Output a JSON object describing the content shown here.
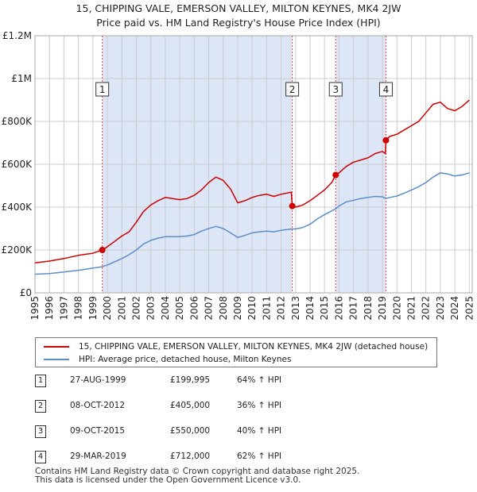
{
  "title_line1": "15, CHIPPING VALE, EMERSON VALLEY, MILTON KEYNES, MK4 2JW",
  "title_line2": "Price paid vs. HM Land Registry's House Price Index (HPI)",
  "colors": {
    "property": "#cc0000",
    "hpi": "#5b8ec9",
    "shade": "#dde6f7",
    "marker_line": "#dd4444",
    "grid": "#cccccc"
  },
  "chart_data": {
    "type": "line",
    "title": "15, CHIPPING VALE, EMERSON VALLEY, MILTON KEYNES, MK4 2JW — Price paid vs. HM Land Registry's House Price Index (HPI)",
    "xlim": [
      1995,
      2025.2
    ],
    "ylim": [
      0,
      1200000
    ],
    "y_ticks": [
      0,
      200000,
      400000,
      600000,
      800000,
      1000000,
      1200000
    ],
    "y_tick_labels": [
      "£0",
      "£200K",
      "£400K",
      "£600K",
      "£800K",
      "£1M",
      "£1.2M"
    ],
    "x_ticks": [
      1995,
      1996,
      1997,
      1998,
      1999,
      2000,
      2001,
      2002,
      2003,
      2004,
      2005,
      2006,
      2007,
      2008,
      2009,
      2010,
      2011,
      2012,
      2013,
      2014,
      2015,
      2016,
      2017,
      2018,
      2019,
      2020,
      2021,
      2022,
      2023,
      2024,
      2025
    ],
    "x_tick_labels": [
      "1995",
      "1996",
      "1997",
      "1998",
      "1999",
      "2000",
      "2001",
      "2002",
      "2003",
      "2004",
      "2005",
      "2006",
      "2007",
      "2008",
      "2009",
      "2010",
      "2011",
      "2012",
      "2013",
      "2014",
      "2015",
      "2016",
      "2017",
      "2018",
      "2019",
      "2020",
      "2021",
      "2022",
      "2023",
      "2024",
      "2025"
    ],
    "shaded_ranges": [
      [
        1999.65,
        2012.77
      ],
      [
        2015.77,
        2019.24
      ]
    ],
    "series": [
      {
        "name": "15, CHIPPING VALE, EMERSON VALLEY, MILTON KEYNES, MK4 2JW (detached house)",
        "x": [
          1995.0,
          1996.0,
          1997.0,
          1998.0,
          1999.0,
          1999.65,
          2000.0,
          2000.5,
          2001.0,
          2001.5,
          2002.0,
          2002.5,
          2003.0,
          2003.5,
          2004.0,
          2004.5,
          2005.0,
          2005.5,
          2006.0,
          2006.5,
          2007.0,
          2007.5,
          2008.0,
          2008.5,
          2009.0,
          2009.5,
          2010.0,
          2010.5,
          2011.0,
          2011.5,
          2012.0,
          2012.7,
          2012.77,
          2013.0,
          2013.5,
          2014.0,
          2014.5,
          2015.0,
          2015.5,
          2015.77,
          2016.0,
          2016.5,
          2017.0,
          2017.5,
          2018.0,
          2018.5,
          2019.0,
          2019.2,
          2019.24,
          2019.5,
          2020.0,
          2020.5,
          2021.0,
          2021.5,
          2022.0,
          2022.5,
          2023.0,
          2023.5,
          2024.0,
          2024.5,
          2025.0
        ],
        "values": [
          140000,
          148000,
          160000,
          175000,
          185000,
          199995,
          215000,
          240000,
          265000,
          285000,
          330000,
          380000,
          410000,
          430000,
          445000,
          440000,
          435000,
          440000,
          455000,
          480000,
          515000,
          540000,
          525000,
          485000,
          420000,
          430000,
          445000,
          455000,
          460000,
          450000,
          460000,
          470000,
          405000,
          400000,
          410000,
          430000,
          455000,
          480000,
          515000,
          550000,
          560000,
          590000,
          610000,
          620000,
          630000,
          650000,
          660000,
          650000,
          712000,
          730000,
          740000,
          760000,
          780000,
          800000,
          840000,
          880000,
          890000,
          860000,
          850000,
          870000,
          900000
        ],
        "sale_points": [
          {
            "x": 1999.65,
            "value": 199995
          },
          {
            "x": 2012.77,
            "value": 405000
          },
          {
            "x": 2015.77,
            "value": 550000
          },
          {
            "x": 2019.24,
            "value": 712000
          }
        ]
      },
      {
        "name": "HPI: Average price, detached house, Milton Keynes",
        "x": [
          1995.0,
          1996.0,
          1997.0,
          1998.0,
          1999.0,
          1999.65,
          2000.0,
          2000.5,
          2001.0,
          2001.5,
          2002.0,
          2002.5,
          2003.0,
          2003.5,
          2004.0,
          2004.5,
          2005.0,
          2005.5,
          2006.0,
          2006.5,
          2007.0,
          2007.5,
          2008.0,
          2008.5,
          2009.0,
          2009.5,
          2010.0,
          2010.5,
          2011.0,
          2011.5,
          2012.0,
          2012.77,
          2013.0,
          2013.5,
          2014.0,
          2014.5,
          2015.0,
          2015.77,
          2016.0,
          2016.5,
          2017.0,
          2017.5,
          2018.0,
          2018.5,
          2019.0,
          2019.24,
          2019.5,
          2020.0,
          2020.5,
          2021.0,
          2021.5,
          2022.0,
          2022.5,
          2023.0,
          2023.5,
          2024.0,
          2024.5,
          2025.0
        ],
        "values": [
          87000,
          90000,
          97000,
          105000,
          115000,
          122000,
          130000,
          145000,
          160000,
          178000,
          200000,
          228000,
          245000,
          255000,
          262000,
          262000,
          262000,
          265000,
          272000,
          288000,
          300000,
          310000,
          300000,
          280000,
          258000,
          268000,
          280000,
          285000,
          288000,
          285000,
          292000,
          298000,
          298000,
          305000,
          320000,
          345000,
          365000,
          392000,
          405000,
          425000,
          432000,
          440000,
          445000,
          450000,
          448000,
          440000,
          445000,
          452000,
          465000,
          480000,
          495000,
          515000,
          540000,
          560000,
          555000,
          545000,
          550000,
          560000
        ]
      }
    ],
    "markers": [
      {
        "label": "1",
        "x": 1999.65
      },
      {
        "label": "2",
        "x": 2012.77
      },
      {
        "label": "3",
        "x": 2015.77
      },
      {
        "label": "4",
        "x": 2019.24
      }
    ]
  },
  "legend": {
    "property_label": "15, CHIPPING VALE, EMERSON VALLEY, MILTON KEYNES, MK4 2JW (detached house)",
    "hpi_label": "HPI: Average price, detached house, Milton Keynes"
  },
  "sales": [
    {
      "num": "1",
      "date": "27-AUG-1999",
      "price": "£199,995",
      "hpi": "64% ↑ HPI"
    },
    {
      "num": "2",
      "date": "08-OCT-2012",
      "price": "£405,000",
      "hpi": "36% ↑ HPI"
    },
    {
      "num": "3",
      "date": "09-OCT-2015",
      "price": "£550,000",
      "hpi": "40% ↑ HPI"
    },
    {
      "num": "4",
      "date": "29-MAR-2019",
      "price": "£712,000",
      "hpi": "62% ↑ HPI"
    }
  ],
  "footer": {
    "line1": "Contains HM Land Registry data © Crown copyright and database right 2025.",
    "line2": "This data is licensed under the Open Government Licence v3.0."
  }
}
